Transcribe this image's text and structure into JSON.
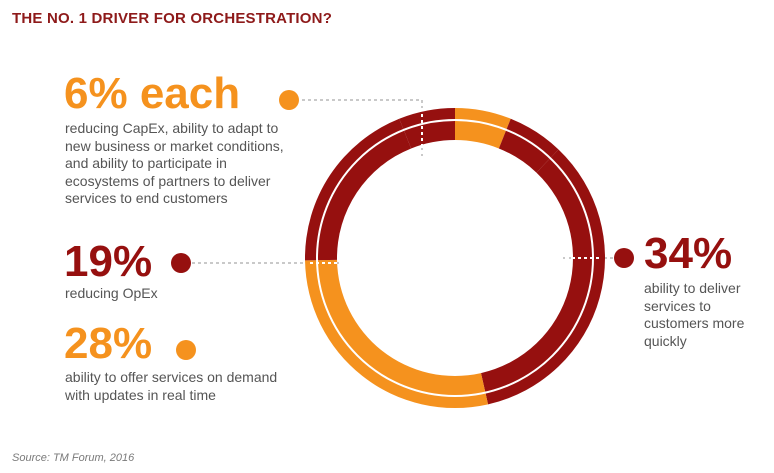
{
  "title": "THE NO. 1 DRIVER FOR ORCHESTRATION?",
  "source": "Source: TM Forum, 2016",
  "colors": {
    "orange": "#f5921e",
    "red": "#96100f",
    "gray": "#c9c9c9"
  },
  "chart_data": {
    "type": "pie",
    "title": "THE NO. 1 DRIVER FOR ORCHESTRATION?",
    "unit": "%",
    "slices": [
      {
        "value": 6,
        "color": "#f5921e",
        "label": "6% each",
        "description": "reducing CapEx, ability to adapt to new business or market conditions, and ability to participate in ecosystems of partners to deliver services to end customers"
      },
      {
        "value": 6,
        "color": "#96100f"
      },
      {
        "value": 34,
        "color": "#96100f",
        "label": "34%",
        "description": "ability to deliver services to customers more quickly"
      },
      {
        "value": 28,
        "color": "#f5921e",
        "label": "28%",
        "description": "ability to offer services on demand with updates in real time"
      },
      {
        "value": 19,
        "color": "#96100f",
        "label": "19%",
        "description": "reducing OpEx"
      },
      {
        "value": 6,
        "color": "#96100f"
      }
    ]
  },
  "callouts": {
    "each6": {
      "value": "6% each",
      "lines": [
        "reducing CapEx, ability to adapt to",
        "new business or market conditions,",
        "and ability to participate in",
        "ecosystems of partners to deliver",
        "services to end customers"
      ]
    },
    "opex19": {
      "value": "19%",
      "lines": [
        "reducing OpEx"
      ]
    },
    "demand28": {
      "value": "28%",
      "lines": [
        "ability to offer services on demand",
        "with updates in real time"
      ]
    },
    "deliver34": {
      "value": "34%",
      "lines": [
        "ability to deliver",
        "services to",
        "customers more",
        "quickly"
      ]
    }
  }
}
